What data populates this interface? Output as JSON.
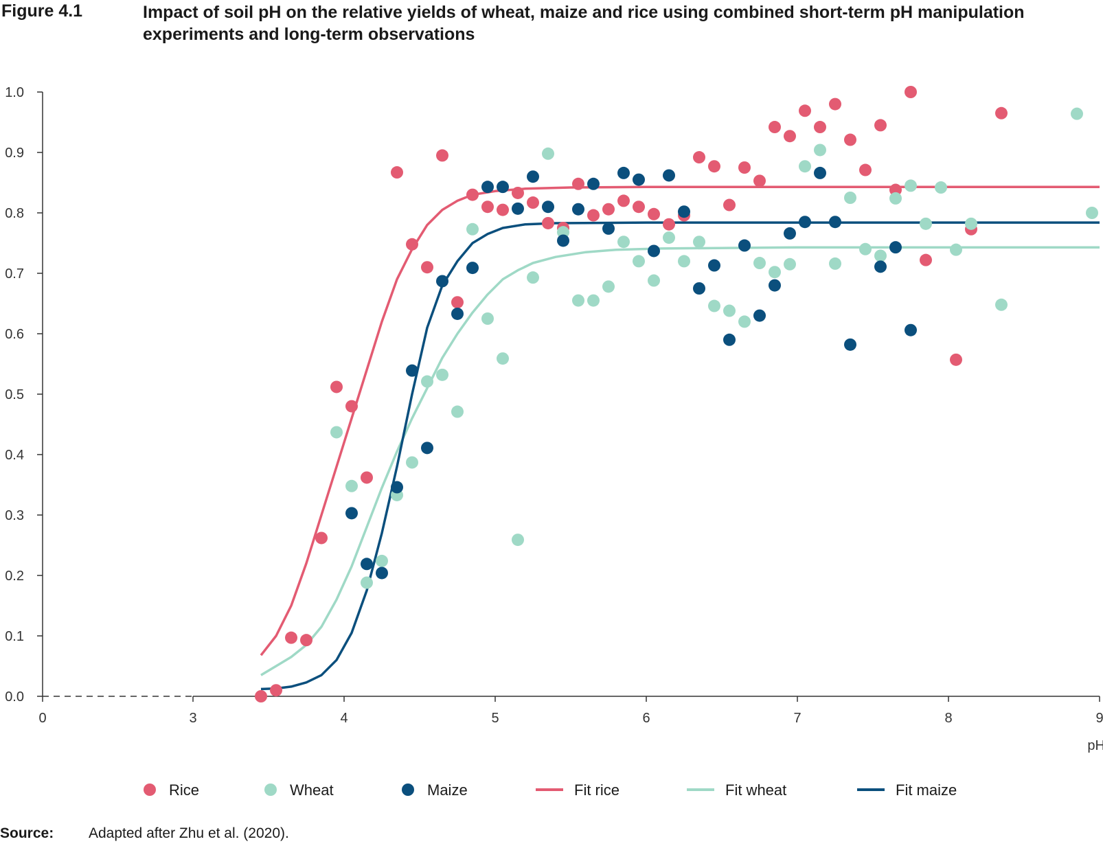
{
  "figure": {
    "label": "Figure 4.1",
    "title": "Impact of soil pH on the relative yields of wheat, maize and rice using combined short-term pH manipulation experiments and long-term observations"
  },
  "source": {
    "label": "Source:",
    "text": "Adapted after Zhu et al. (2020)."
  },
  "chart_data": {
    "type": "scatter",
    "title": "Impact of soil pH on the relative yields of wheat, maize and rice using combined short-term pH manipulation experiments and long-term observations",
    "xlabel": "pH",
    "ylabel": "",
    "x_ticks": [
      0,
      3,
      4,
      5,
      6,
      7,
      8,
      9
    ],
    "x_tick_labels": [
      "0",
      "3",
      "4",
      "5",
      "6",
      "7",
      "8",
      "9"
    ],
    "x_axis_break": "0 to 3 shown as dashed line",
    "y_ticks": [
      0.0,
      0.1,
      0.2,
      0.3,
      0.4,
      0.5,
      0.6,
      0.7,
      0.8,
      0.9,
      1.0
    ],
    "y_tick_labels": [
      "0.0",
      "0.1",
      "0.2",
      "0.3",
      "0.4",
      "0.5",
      "0.6",
      "0.7",
      "0.8",
      "0.9",
      "1.0"
    ],
    "ylim": [
      0,
      1.0
    ],
    "grid": false,
    "legend_position": "bottom",
    "colors": {
      "rice": "#e35b72",
      "wheat": "#9fd9c6",
      "maize": "#0b4f7d"
    },
    "series": [
      {
        "name": "Rice",
        "kind": "points",
        "color": "#e35b72",
        "points": [
          [
            3.45,
            0.0
          ],
          [
            3.55,
            0.01
          ],
          [
            3.65,
            0.097
          ],
          [
            3.75,
            0.093
          ],
          [
            3.85,
            0.262
          ],
          [
            3.95,
            0.512
          ],
          [
            4.05,
            0.48
          ],
          [
            4.15,
            0.362
          ],
          [
            4.35,
            0.867
          ],
          [
            4.45,
            0.748
          ],
          [
            4.55,
            0.71
          ],
          [
            4.65,
            0.895
          ],
          [
            4.75,
            0.652
          ],
          [
            4.85,
            0.83
          ],
          [
            4.95,
            0.81
          ],
          [
            5.05,
            0.805
          ],
          [
            5.15,
            0.833
          ],
          [
            5.25,
            0.817
          ],
          [
            5.35,
            0.783
          ],
          [
            5.45,
            0.775
          ],
          [
            5.55,
            0.848
          ],
          [
            5.65,
            0.796
          ],
          [
            5.75,
            0.806
          ],
          [
            5.85,
            0.82
          ],
          [
            5.95,
            0.81
          ],
          [
            6.05,
            0.798
          ],
          [
            6.15,
            0.781
          ],
          [
            6.25,
            0.796
          ],
          [
            6.35,
            0.892
          ],
          [
            6.45,
            0.877
          ],
          [
            6.55,
            0.813
          ],
          [
            6.65,
            0.875
          ],
          [
            6.75,
            0.853
          ],
          [
            6.85,
            0.942
          ],
          [
            6.95,
            0.927
          ],
          [
            7.05,
            0.969
          ],
          [
            7.15,
            0.942
          ],
          [
            7.25,
            0.98
          ],
          [
            7.35,
            0.921
          ],
          [
            7.45,
            0.871
          ],
          [
            7.55,
            0.945
          ],
          [
            7.65,
            0.838
          ],
          [
            7.75,
            1.0
          ],
          [
            7.85,
            0.722
          ],
          [
            8.05,
            0.557
          ],
          [
            8.15,
            0.773
          ],
          [
            8.35,
            0.965
          ]
        ]
      },
      {
        "name": "Wheat",
        "kind": "points",
        "color": "#9fd9c6",
        "points": [
          [
            3.95,
            0.437
          ],
          [
            4.05,
            0.348
          ],
          [
            4.15,
            0.188
          ],
          [
            4.25,
            0.224
          ],
          [
            4.35,
            0.333
          ],
          [
            4.45,
            0.387
          ],
          [
            4.55,
            0.521
          ],
          [
            4.65,
            0.532
          ],
          [
            4.75,
            0.471
          ],
          [
            4.85,
            0.773
          ],
          [
            4.95,
            0.625
          ],
          [
            5.05,
            0.559
          ],
          [
            5.15,
            0.259
          ],
          [
            5.25,
            0.693
          ],
          [
            5.35,
            0.898
          ],
          [
            5.45,
            0.768
          ],
          [
            5.55,
            0.655
          ],
          [
            5.65,
            0.655
          ],
          [
            5.75,
            0.678
          ],
          [
            5.85,
            0.752
          ],
          [
            5.95,
            0.72
          ],
          [
            6.05,
            0.688
          ],
          [
            6.15,
            0.759
          ],
          [
            6.25,
            0.72
          ],
          [
            6.35,
            0.752
          ],
          [
            6.45,
            0.646
          ],
          [
            6.55,
            0.638
          ],
          [
            6.65,
            0.62
          ],
          [
            6.75,
            0.717
          ],
          [
            6.85,
            0.702
          ],
          [
            6.95,
            0.715
          ],
          [
            7.05,
            0.877
          ],
          [
            7.15,
            0.904
          ],
          [
            7.25,
            0.716
          ],
          [
            7.35,
            0.825
          ],
          [
            7.45,
            0.74
          ],
          [
            7.55,
            0.729
          ],
          [
            7.65,
            0.824
          ],
          [
            7.75,
            0.845
          ],
          [
            7.85,
            0.782
          ],
          [
            7.95,
            0.842
          ],
          [
            8.05,
            0.739
          ],
          [
            8.15,
            0.782
          ],
          [
            8.35,
            0.648
          ],
          [
            8.85,
            0.964
          ],
          [
            8.95,
            0.8
          ]
        ]
      },
      {
        "name": "Maize",
        "kind": "points",
        "color": "#0b4f7d",
        "points": [
          [
            4.05,
            0.303
          ],
          [
            4.15,
            0.219
          ],
          [
            4.25,
            0.204
          ],
          [
            4.35,
            0.346
          ],
          [
            4.45,
            0.539
          ],
          [
            4.55,
            0.411
          ],
          [
            4.65,
            0.687
          ],
          [
            4.75,
            0.633
          ],
          [
            4.85,
            0.709
          ],
          [
            4.95,
            0.843
          ],
          [
            5.05,
            0.843
          ],
          [
            5.15,
            0.807
          ],
          [
            5.25,
            0.86
          ],
          [
            5.35,
            0.81
          ],
          [
            5.45,
            0.754
          ],
          [
            5.55,
            0.806
          ],
          [
            5.65,
            0.848
          ],
          [
            5.75,
            0.774
          ],
          [
            5.85,
            0.866
          ],
          [
            5.95,
            0.855
          ],
          [
            6.05,
            0.737
          ],
          [
            6.15,
            0.862
          ],
          [
            6.25,
            0.802
          ],
          [
            6.35,
            0.675
          ],
          [
            6.45,
            0.713
          ],
          [
            6.55,
            0.59
          ],
          [
            6.65,
            0.746
          ],
          [
            6.75,
            0.63
          ],
          [
            6.85,
            0.68
          ],
          [
            6.95,
            0.766
          ],
          [
            7.05,
            0.785
          ],
          [
            7.15,
            0.866
          ],
          [
            7.25,
            0.785
          ],
          [
            7.35,
            0.582
          ],
          [
            7.55,
            0.711
          ],
          [
            7.65,
            0.743
          ],
          [
            7.75,
            0.606
          ]
        ]
      },
      {
        "name": "Fit rice",
        "kind": "line",
        "color": "#e35b72",
        "points": [
          [
            3.45,
            0.068
          ],
          [
            3.55,
            0.1
          ],
          [
            3.65,
            0.15
          ],
          [
            3.75,
            0.22
          ],
          [
            3.85,
            0.3
          ],
          [
            3.95,
            0.38
          ],
          [
            4.05,
            0.46
          ],
          [
            4.15,
            0.54
          ],
          [
            4.25,
            0.62
          ],
          [
            4.35,
            0.69
          ],
          [
            4.45,
            0.74
          ],
          [
            4.55,
            0.78
          ],
          [
            4.65,
            0.805
          ],
          [
            4.75,
            0.82
          ],
          [
            4.85,
            0.83
          ],
          [
            5.0,
            0.836
          ],
          [
            5.2,
            0.84
          ],
          [
            5.5,
            0.842
          ],
          [
            6.0,
            0.843
          ],
          [
            7.0,
            0.843
          ],
          [
            8.0,
            0.843
          ],
          [
            9.0,
            0.843
          ]
        ]
      },
      {
        "name": "Fit wheat",
        "kind": "line",
        "color": "#9fd9c6",
        "points": [
          [
            3.45,
            0.035
          ],
          [
            3.55,
            0.05
          ],
          [
            3.65,
            0.065
          ],
          [
            3.75,
            0.085
          ],
          [
            3.85,
            0.115
          ],
          [
            3.95,
            0.16
          ],
          [
            4.05,
            0.215
          ],
          [
            4.15,
            0.28
          ],
          [
            4.25,
            0.345
          ],
          [
            4.35,
            0.405
          ],
          [
            4.45,
            0.46
          ],
          [
            4.55,
            0.51
          ],
          [
            4.65,
            0.56
          ],
          [
            4.75,
            0.6
          ],
          [
            4.85,
            0.635
          ],
          [
            4.95,
            0.665
          ],
          [
            5.05,
            0.69
          ],
          [
            5.15,
            0.705
          ],
          [
            5.25,
            0.717
          ],
          [
            5.4,
            0.727
          ],
          [
            5.6,
            0.735
          ],
          [
            5.8,
            0.739
          ],
          [
            6.1,
            0.741
          ],
          [
            7.0,
            0.743
          ],
          [
            8.0,
            0.743
          ],
          [
            9.0,
            0.743
          ]
        ]
      },
      {
        "name": "Fit maize",
        "kind": "line",
        "color": "#0b4f7d",
        "points": [
          [
            3.45,
            0.012
          ],
          [
            3.55,
            0.013
          ],
          [
            3.65,
            0.016
          ],
          [
            3.75,
            0.023
          ],
          [
            3.85,
            0.035
          ],
          [
            3.95,
            0.06
          ],
          [
            4.05,
            0.105
          ],
          [
            4.15,
            0.175
          ],
          [
            4.25,
            0.27
          ],
          [
            4.35,
            0.38
          ],
          [
            4.45,
            0.5
          ],
          [
            4.55,
            0.61
          ],
          [
            4.65,
            0.68
          ],
          [
            4.75,
            0.72
          ],
          [
            4.85,
            0.75
          ],
          [
            4.95,
            0.765
          ],
          [
            5.05,
            0.775
          ],
          [
            5.2,
            0.781
          ],
          [
            5.4,
            0.783
          ],
          [
            6.0,
            0.784
          ],
          [
            7.0,
            0.784
          ],
          [
            8.0,
            0.784
          ],
          [
            9.0,
            0.784
          ]
        ]
      }
    ]
  }
}
